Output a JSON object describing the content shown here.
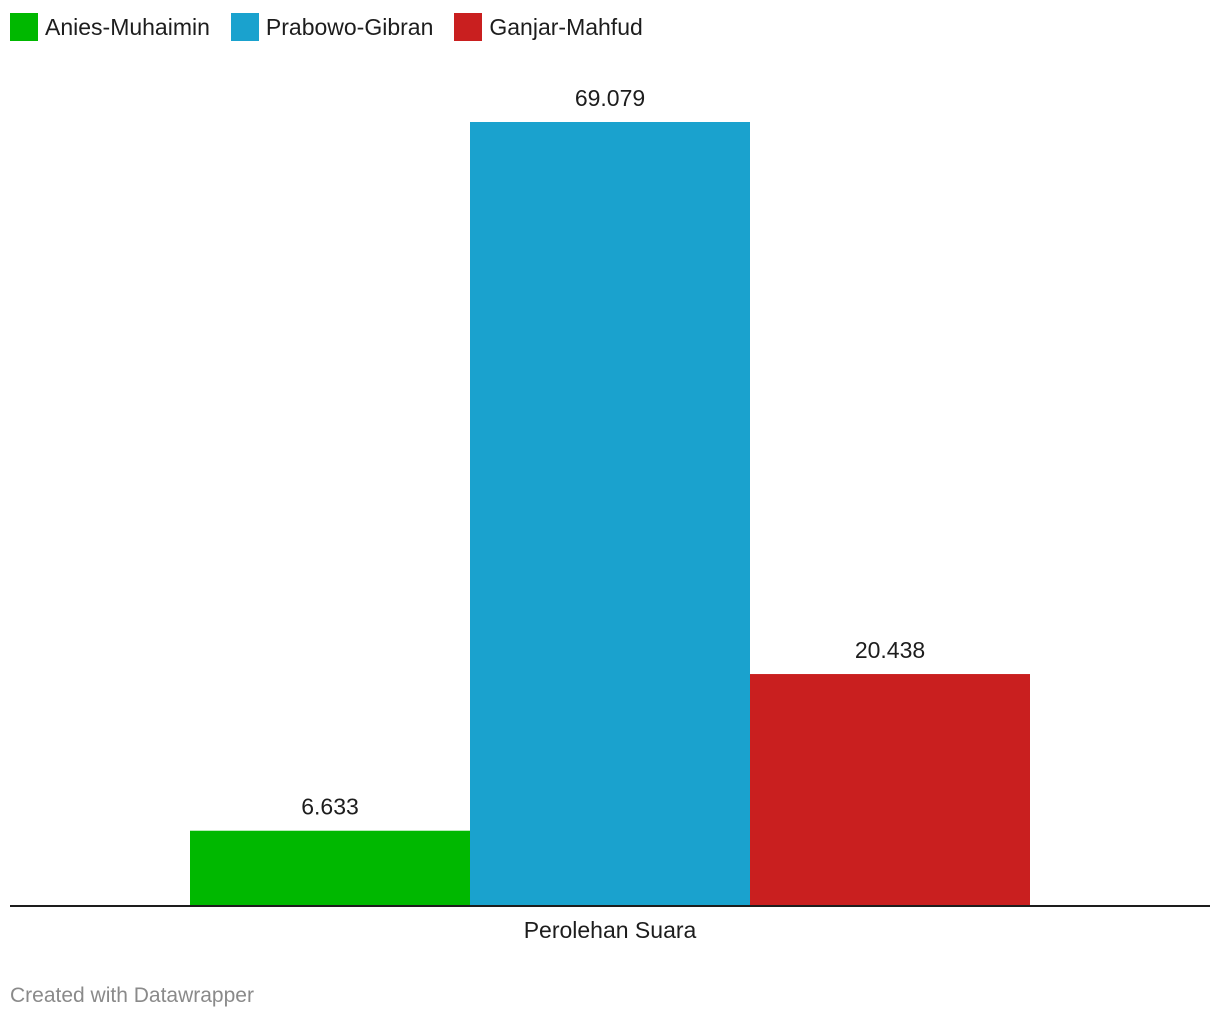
{
  "legend": {
    "items": [
      {
        "label": "Anies-Muhaimin",
        "color": "#00b800"
      },
      {
        "label": "Prabowo-Gibran",
        "color": "#1aa2ce"
      },
      {
        "label": "Ganjar-Mahfud",
        "color": "#c91f1f"
      }
    ]
  },
  "chart_data": {
    "type": "bar",
    "categories": [
      "Perolehan Suara"
    ],
    "series": [
      {
        "name": "Anies-Muhaimin",
        "values": [
          6.633
        ],
        "label": "6.633",
        "color": "#00b800"
      },
      {
        "name": "Prabowo-Gibran",
        "values": [
          69.079
        ],
        "label": "69.079",
        "color": "#1aa2ce"
      },
      {
        "name": "Ganjar-Mahfud",
        "values": [
          20.438
        ],
        "label": "20.438",
        "color": "#c91f1f"
      }
    ],
    "title": "",
    "xlabel": "",
    "ylabel": "",
    "ylim": [
      0,
      69.079
    ],
    "grid": false,
    "legend_position": "top-left"
  },
  "footer": {
    "credit": "Created with Datawrapper"
  }
}
